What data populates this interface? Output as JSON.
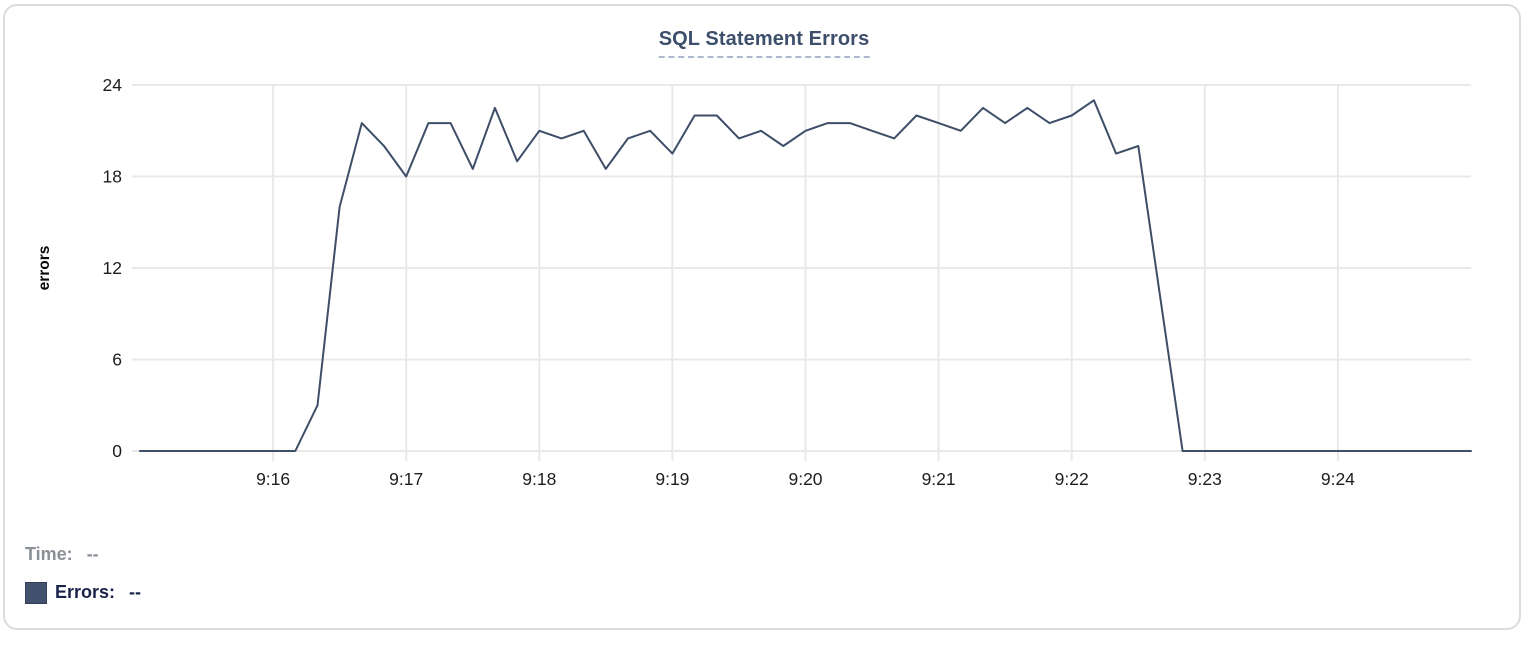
{
  "chart_data": {
    "type": "line",
    "title": "SQL Statement Errors",
    "xlabel": "",
    "ylabel": "errors",
    "ylim": [
      0,
      24
    ],
    "y_ticks": [
      0,
      6,
      12,
      18,
      24
    ],
    "x_ticks": [
      "9:16",
      "9:17",
      "9:18",
      "9:19",
      "9:20",
      "9:21",
      "9:22",
      "9:23",
      "9:24"
    ],
    "x_range": [
      "9:15:00",
      "9:25:00"
    ],
    "grid": true,
    "legend_position": "bottom-left",
    "series": [
      {
        "name": "Errors",
        "color": "#3e4e68",
        "x_start": "9:15:00",
        "x_step_seconds": 10,
        "values": [
          0,
          0,
          0,
          0,
          0,
          0,
          0,
          0,
          3,
          16,
          21.5,
          20,
          18,
          21.5,
          21.5,
          18.5,
          22.5,
          19,
          21,
          20.5,
          21,
          18.5,
          20.5,
          21,
          19.5,
          22,
          22,
          20.5,
          21,
          20,
          21,
          21.5,
          21.5,
          21,
          20.5,
          22,
          21.5,
          21,
          22.5,
          21.5,
          22.5,
          21.5,
          22,
          23,
          19.5,
          20,
          10,
          0,
          0,
          0,
          0,
          0,
          0,
          0,
          0,
          0,
          0,
          0,
          0,
          0,
          0
        ]
      }
    ]
  },
  "tooltip_readout": {
    "time_label": "Time:",
    "time_value": "--",
    "errors_label": "Errors:",
    "errors_value": "--"
  },
  "colors": {
    "line": "#3e4e68",
    "title_text": "#3d4f6b",
    "title_underline": "#aeb8cc",
    "grid": "#e9e9e9",
    "tick_text": "#1d1d1f",
    "axis_label_text": "#0a0a0a",
    "time_text": "#8b8f96",
    "errors_text": "#1a2349",
    "swatch_fill": "#42526e",
    "card_border": "#dcdcde"
  }
}
